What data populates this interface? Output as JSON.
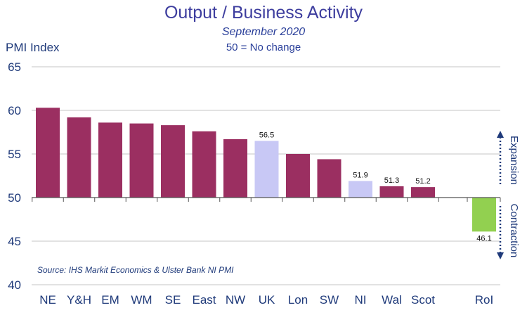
{
  "chart_data": {
    "type": "bar",
    "title": "Output / Business Activity",
    "subtitle": "September 2020",
    "note": "50 = No change",
    "ylabel": "PMI Index",
    "ylim": [
      40,
      65
    ],
    "yticks": [
      40,
      45,
      50,
      55,
      60,
      65
    ],
    "baseline": 50,
    "grid": true,
    "categories": [
      "NE",
      "Y&H",
      "EM",
      "WM",
      "SE",
      "East",
      "NW",
      "UK",
      "Lon",
      "SW",
      "NI",
      "Wal",
      "Scot",
      "RoI"
    ],
    "values": [
      60.3,
      59.2,
      58.6,
      58.5,
      58.3,
      57.6,
      56.7,
      56.5,
      55.0,
      54.4,
      51.9,
      51.3,
      51.2,
      46.1
    ],
    "data_labels": {
      "UK": "56.5",
      "NI": "51.9",
      "Wal": "51.3",
      "Scot": "51.2",
      "RoI": "46.1"
    },
    "colors": {
      "default": "#9b2f61",
      "UK": "#c8c8f5",
      "NI": "#c8c8f5",
      "RoI": "#92d050"
    },
    "annotations": {
      "expansion": "Expansion",
      "contraction": "Contraction"
    },
    "source": "Source: IHS Markit Economics & Ulster Bank NI PMI"
  }
}
